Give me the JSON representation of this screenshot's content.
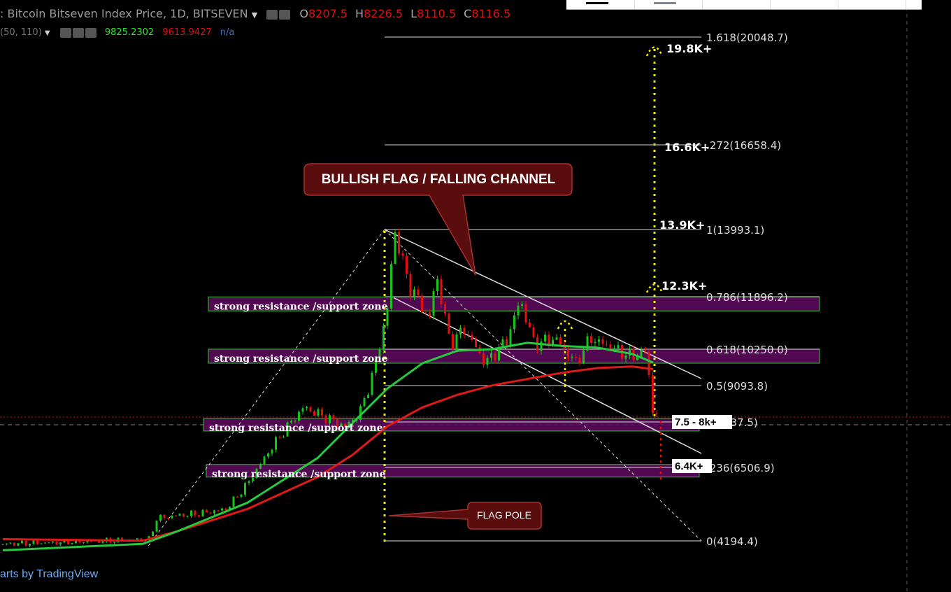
{
  "header": {
    "symbol": ": Bitcoin Bitseven Index Price, 1D, BITSEVEN",
    "o_label": "O",
    "o_value": "8207.5",
    "h_label": "H",
    "h_value": "8226.5",
    "l_label": "L",
    "l_value": "8110.5",
    "c_label": "C",
    "c_value": "8116.5",
    "indicator": "(50, 110)",
    "ma1": "9825.2302",
    "ma2": "9613.9427",
    "na": "n/a"
  },
  "watermark": "arts by TradingView",
  "colors": {
    "bg": "#000000",
    "up": "#18c418",
    "down": "#e01010",
    "ma_fast": "#27c93f",
    "ma_slow": "#e01818",
    "zone": "#5a0a5a",
    "zone_border": "#2ec82e",
    "fib": "#d8d8d8",
    "target": "#f5f000",
    "callout_bg": "#5a0d0d",
    "callout_border": "#a83232"
  },
  "chart_data": {
    "type": "line",
    "title": "Bitcoin Bitseven Index Price, 1D, BITSEVEN",
    "fib_levels": [
      {
        "ratio": "1.618",
        "price": 20048.7,
        "label": "1.618(20048.7)"
      },
      {
        "ratio": "1.272",
        "price": 16658.4,
        "label": "1.272(16658.4)",
        "visible_label": ".272(16658.4)"
      },
      {
        "ratio": "1",
        "price": 13993.1,
        "label": "1(13993.1)"
      },
      {
        "ratio": "0.786",
        "price": 11896.2,
        "label": "0.786(11896.2)"
      },
      {
        "ratio": "0.618",
        "price": 10250.0,
        "label": "0.618(10250.0)"
      },
      {
        "ratio": "0.5",
        "price": 9093.8,
        "label": "0.5(9093.8)"
      },
      {
        "ratio": "0.382",
        "price": 7937.5,
        "label": "0.382(7937.5)",
        "visible_label": "2(7937.5)"
      },
      {
        "ratio": "0.236",
        "price": 6506.9,
        "label": "0.236(6506.9)",
        "visible_label": ".236(6506.9)"
      },
      {
        "ratio": "0",
        "price": 4194.4,
        "label": "0(4194.4)"
      }
    ],
    "targets": [
      "19.8K+",
      "16.6K+",
      "13.9K+",
      "12.3K+"
    ],
    "boxed_targets": [
      "7.5 - 8k+",
      "6.4K+"
    ],
    "zones": [
      {
        "label": "strong resistance /support zone",
        "top": 11890,
        "bottom": 11700
      },
      {
        "label": "strong resistance /support zone",
        "top": 10250,
        "bottom": 9950
      },
      {
        "label": "strong resistance /support zone",
        "top": 8050,
        "bottom": 7800
      },
      {
        "label": "strong resistance /support zone",
        "top": 6600,
        "bottom": 6400
      }
    ],
    "annotations": [
      "BULLISH FLAG / FALLING CHANNEL",
      "FLAG POLE"
    ],
    "price_path": [
      [
        0,
        4100
      ],
      [
        8,
        4150
      ],
      [
        15,
        4200
      ],
      [
        21,
        4250
      ],
      [
        22,
        4900
      ],
      [
        25,
        5000
      ],
      [
        28,
        5050
      ],
      [
        32,
        5200
      ],
      [
        35,
        6000
      ],
      [
        38,
        7000
      ],
      [
        40,
        7600
      ],
      [
        43,
        8400
      ],
      [
        46,
        8100
      ],
      [
        49,
        7800
      ],
      [
        51,
        8200
      ],
      [
        53,
        9500
      ],
      [
        55,
        11500
      ],
      [
        56,
        13993
      ],
      [
        58,
        12300
      ],
      [
        61,
        11200
      ],
      [
        62,
        12600
      ],
      [
        64,
        10400
      ],
      [
        66,
        10900
      ],
      [
        69,
        9800
      ],
      [
        72,
        10500
      ],
      [
        74,
        11800
      ],
      [
        76,
        10400
      ],
      [
        79,
        10600
      ],
      [
        82,
        9800
      ],
      [
        84,
        10600
      ],
      [
        87,
        10300
      ],
      [
        90,
        10000
      ],
      [
        92,
        10200
      ],
      [
        93,
        8200
      ],
      [
        95,
        8116
      ]
    ],
    "ma_fast": [
      [
        0,
        3900
      ],
      [
        20,
        4100
      ],
      [
        25,
        4500
      ],
      [
        35,
        5400
      ],
      [
        45,
        6800
      ],
      [
        50,
        7900
      ],
      [
        55,
        9000
      ],
      [
        60,
        9800
      ],
      [
        65,
        10200
      ],
      [
        70,
        10250
      ],
      [
        75,
        10450
      ],
      [
        80,
        10350
      ],
      [
        85,
        10300
      ],
      [
        90,
        10100
      ],
      [
        93,
        9825
      ]
    ],
    "ma_slow": [
      [
        0,
        4250
      ],
      [
        20,
        4200
      ],
      [
        25,
        4500
      ],
      [
        35,
        5200
      ],
      [
        45,
        6200
      ],
      [
        50,
        6900
      ],
      [
        55,
        7800
      ],
      [
        60,
        8400
      ],
      [
        65,
        8800
      ],
      [
        70,
        9100
      ],
      [
        75,
        9300
      ],
      [
        80,
        9500
      ],
      [
        85,
        9650
      ],
      [
        90,
        9700
      ],
      [
        93,
        9614
      ]
    ]
  }
}
